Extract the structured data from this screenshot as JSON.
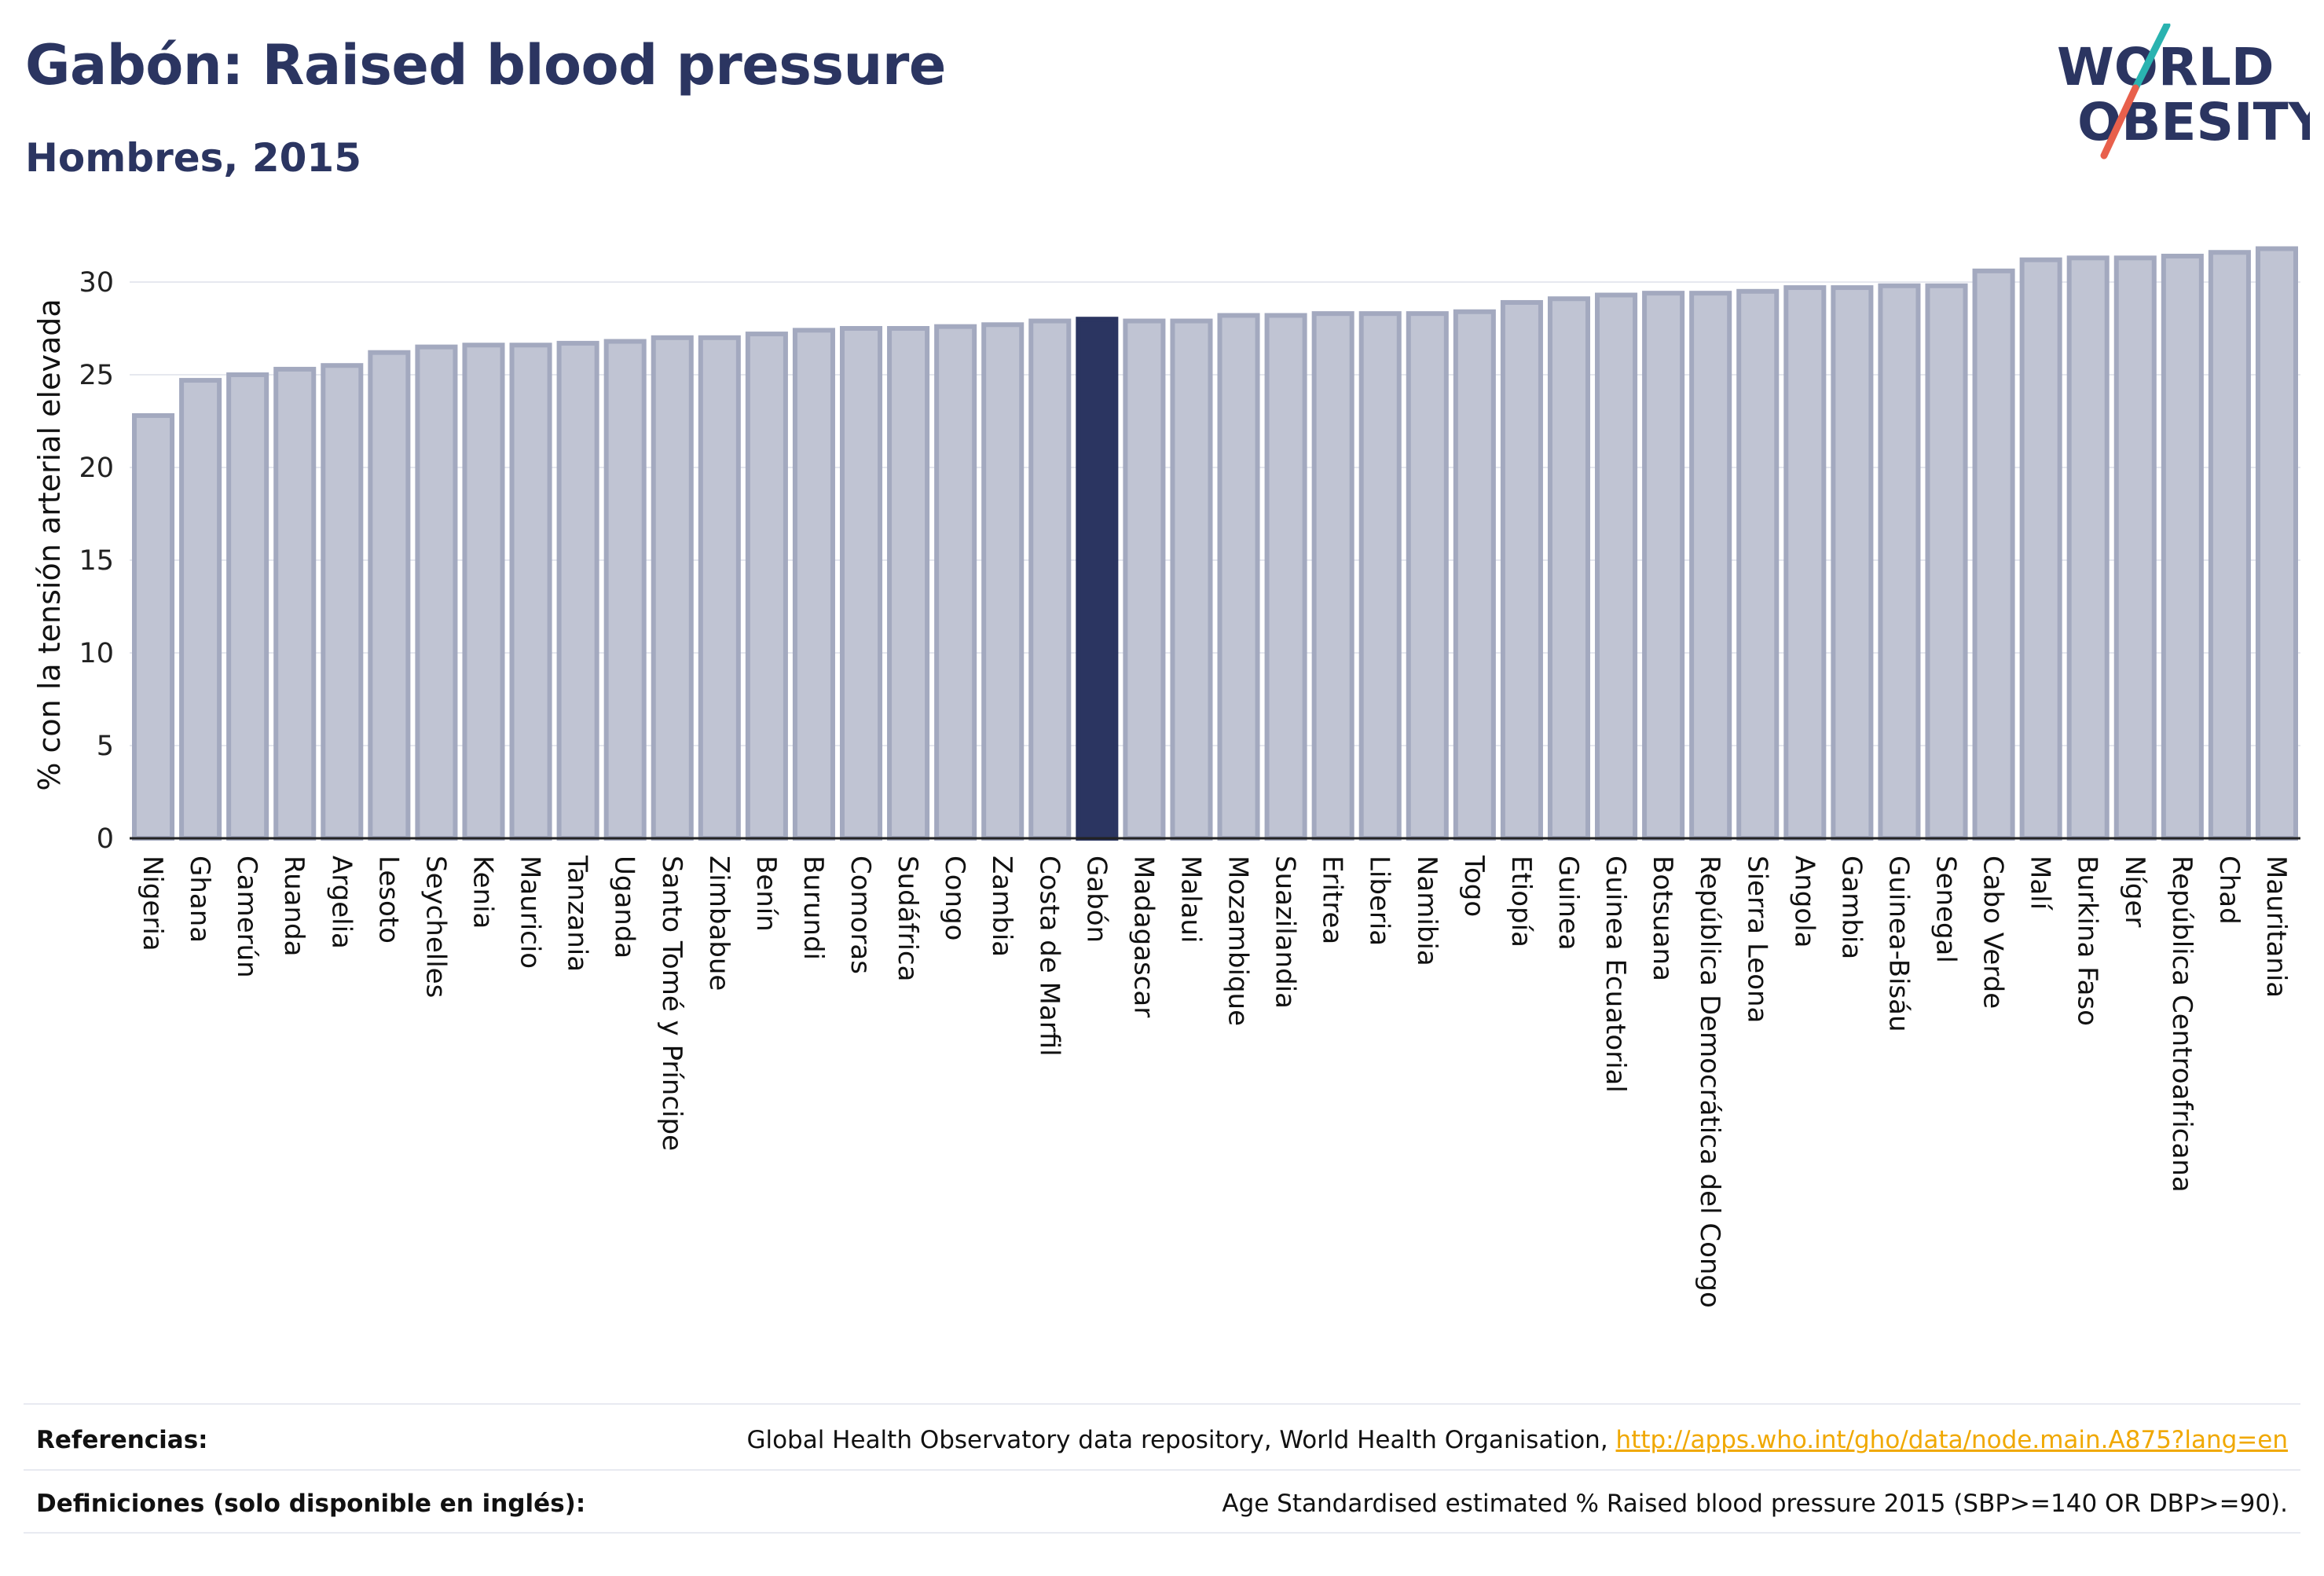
{
  "header": {
    "title": "Gabón: Raised blood pressure",
    "subtitle": "Hombres, 2015"
  },
  "logo": {
    "line1": "WORLD",
    "line2": "OBESITY",
    "colors": {
      "text": "#2b3561",
      "slash_top": "#2ab3b0",
      "slash_bottom": "#e8604c"
    }
  },
  "chart_data": {
    "type": "bar",
    "title": "",
    "ylabel": "% con la tensión arterial elevada",
    "xlabel": "",
    "ylim": [
      0,
      32.5
    ],
    "yticks": [
      0,
      5,
      10,
      15,
      20,
      25,
      30
    ],
    "grid": true,
    "highlight": "Gabón",
    "colors": {
      "bar": "#c0c4d3",
      "bar_edge": "#a3a9bf",
      "highlight": "#2b3561",
      "grid": "#e6e8ef"
    },
    "categories": [
      "Nigeria",
      "Ghana",
      "Camerún",
      "Ruanda",
      "Argelia",
      "Lesoto",
      "Seychelles",
      "Kenia",
      "Mauricio",
      "Tanzania",
      "Uganda",
      "Santo Tomé y Príncipe",
      "Zimbabue",
      "Benín",
      "Burundi",
      "Comoras",
      "Sudáfrica",
      "Congo",
      "Zambia",
      "Costa de Marfil",
      "Gabón",
      "Madagascar",
      "Malaui",
      "Mozambique",
      "Suazilandia",
      "Eritrea",
      "Liberia",
      "Namibia",
      "Togo",
      "Etiopía",
      "Guinea",
      "Guinea Ecuatorial",
      "Botsuana",
      "República Democrática del Congo",
      "Sierra Leona",
      "Angola",
      "Gambia",
      "Guinea-Bisáu",
      "Senegal",
      "Cabo Verde",
      "Malí",
      "Burkina Faso",
      "Níger",
      "República Centroafricana",
      "Chad",
      "Mauritania"
    ],
    "values": [
      22.8,
      24.7,
      25.0,
      25.3,
      25.5,
      26.2,
      26.5,
      26.6,
      26.6,
      26.7,
      26.8,
      27.0,
      27.0,
      27.2,
      27.4,
      27.5,
      27.5,
      27.6,
      27.7,
      27.9,
      28.0,
      27.9,
      27.9,
      28.2,
      28.2,
      28.3,
      28.3,
      28.3,
      28.4,
      28.9,
      29.1,
      29.3,
      29.4,
      29.4,
      29.5,
      29.7,
      29.7,
      29.8,
      29.8,
      30.6,
      31.2,
      31.3,
      31.3,
      31.4,
      31.6,
      31.8
    ]
  },
  "footer": {
    "references_label": "Referencias:",
    "references_text": "Global Health Observatory data repository, World Health Organisation, ",
    "references_link": "http://apps.who.int/gho/data/node.main.A875?lang=en",
    "definitions_label": "Definiciones (solo disponible en inglés):",
    "definitions_text": "Age Standardised estimated % Raised blood pressure 2015 (SBP>=140 OR DBP>=90)."
  }
}
